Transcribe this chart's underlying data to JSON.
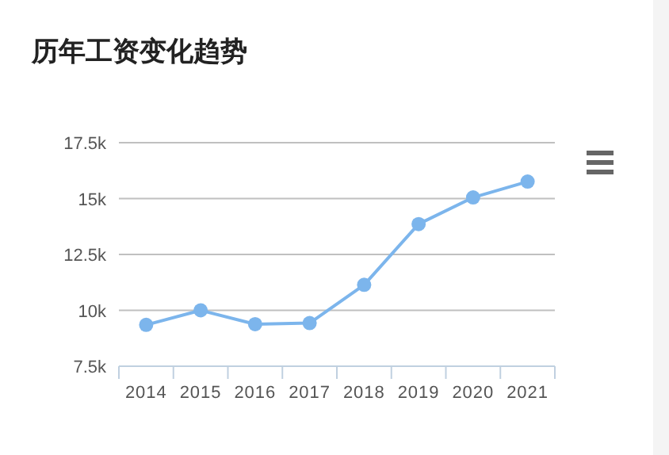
{
  "chart_data": {
    "type": "line",
    "title": "历年工资变化趋势",
    "categories": [
      "2014",
      "2015",
      "2016",
      "2017",
      "2018",
      "2019",
      "2020",
      "2021"
    ],
    "series": [
      {
        "color": "#7cb5ec",
        "values": [
          9350,
          10000,
          9380,
          9430,
          11140,
          13860,
          15050,
          15760
        ]
      }
    ],
    "ylim": [
      7500,
      17500
    ],
    "yticks": [
      {
        "value": 7500,
        "label": "7.5k"
      },
      {
        "value": 10000,
        "label": "10k"
      },
      {
        "value": 12500,
        "label": "12.5k"
      },
      {
        "value": 15000,
        "label": "15k"
      },
      {
        "value": 17500,
        "label": "17.5k"
      }
    ],
    "grid": "y",
    "marker": "circle",
    "line_style": "solid"
  }
}
